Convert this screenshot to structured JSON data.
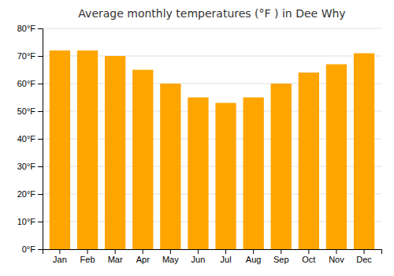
{
  "chart_data": {
    "type": "bar",
    "title": "Average monthly temperatures (°F ) in Dee Why",
    "categories": [
      "Jan",
      "Feb",
      "Mar",
      "Apr",
      "May",
      "Jun",
      "Jul",
      "Aug",
      "Sep",
      "Oct",
      "Nov",
      "Dec"
    ],
    "values": [
      72,
      72,
      70,
      65,
      60,
      55,
      53,
      55,
      60,
      64,
      67,
      71
    ],
    "color": "#FFA500",
    "ylim": [
      0,
      80
    ],
    "yticks": [
      {
        "value": 0,
        "label": "0°F"
      },
      {
        "value": 10,
        "label": "10°F"
      },
      {
        "value": 20,
        "label": "20°F"
      },
      {
        "value": 30,
        "label": "30°F"
      },
      {
        "value": 40,
        "label": "40°F"
      },
      {
        "value": 50,
        "label": "50°F"
      },
      {
        "value": 60,
        "label": "60°F"
      },
      {
        "value": 70,
        "label": "70°F"
      },
      {
        "value": 80,
        "label": "80°F"
      }
    ],
    "grid": true
  }
}
